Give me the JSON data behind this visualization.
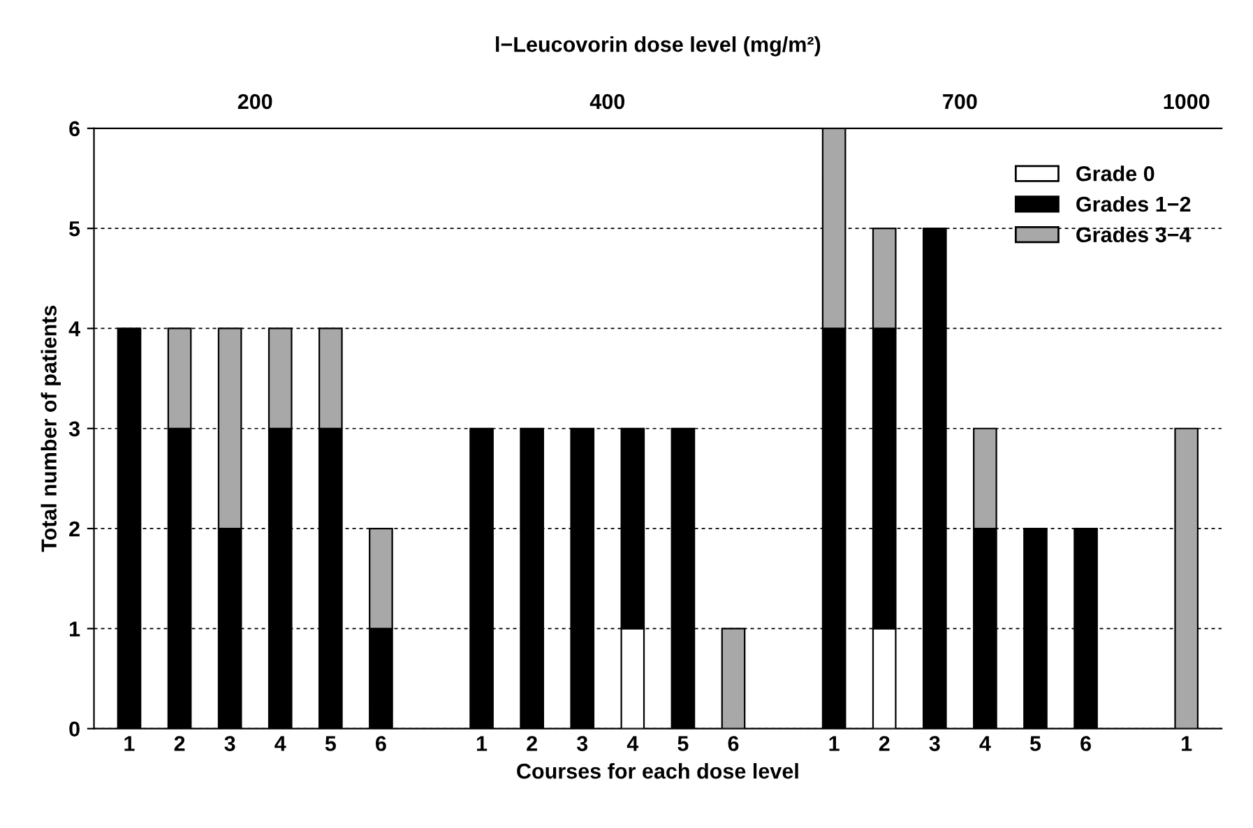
{
  "chart_data": {
    "type": "bar",
    "stacked": true,
    "x2label": "l−Leucovorin dose level (mg/m²)",
    "xlabel": "Courses for each dose level",
    "ylabel": "Total number of patients",
    "categories": [
      "1",
      "2",
      "3",
      "4",
      "5",
      "6",
      null,
      "1",
      "2",
      "3",
      "4",
      "5",
      "6",
      null,
      "1",
      "2",
      "3",
      "4",
      "5",
      "6",
      null,
      "1"
    ],
    "series": [
      {
        "name": "Grade 0",
        "color": "#ffffff",
        "values": [
          0,
          0,
          0,
          0,
          0,
          0,
          null,
          0,
          0,
          0,
          1,
          0,
          0,
          null,
          0,
          1,
          0,
          0,
          0,
          0,
          null,
          0
        ]
      },
      {
        "name": "Grades 1−2",
        "color": "#000000",
        "values": [
          4,
          3,
          2,
          3,
          3,
          1,
          null,
          3,
          3,
          3,
          2,
          3,
          0,
          null,
          4,
          3,
          5,
          2,
          2,
          2,
          null,
          0
        ]
      },
      {
        "name": "Grades 3−4",
        "color": "#a8a8a8",
        "values": [
          0,
          1,
          2,
          1,
          1,
          1,
          null,
          0,
          0,
          0,
          0,
          0,
          1,
          null,
          2,
          1,
          0,
          1,
          0,
          0,
          null,
          3
        ]
      }
    ],
    "annotations": [
      "200",
      "400",
      "700",
      "1000"
    ],
    "ylim": [
      0,
      6
    ],
    "yticks": [
      0,
      1,
      2,
      3,
      4,
      5,
      6
    ],
    "grid": "y",
    "legend": "top right"
  }
}
